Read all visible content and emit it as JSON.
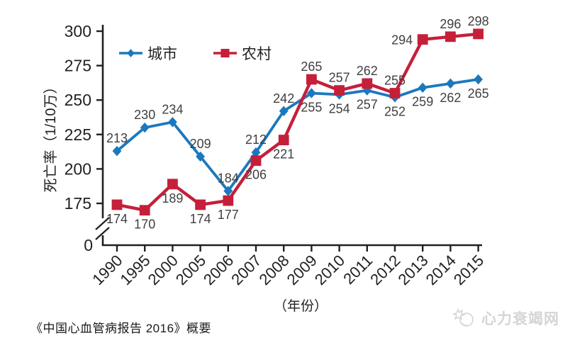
{
  "page": {
    "caption": "《中国心血管病报告 2016》概要",
    "watermark": "心力衰竭网"
  },
  "chart_data": {
    "type": "line",
    "title": "",
    "xlabel": "（年份）",
    "ylabel": "死亡率（1/10万）",
    "categories": [
      "1990",
      "1995",
      "2000",
      "2005",
      "2006",
      "2007",
      "2008",
      "2009",
      "2010",
      "2011",
      "2012",
      "2013",
      "2014",
      "2015"
    ],
    "y_ticks": [
      0,
      175,
      200,
      225,
      250,
      275,
      300
    ],
    "ylim": [
      167,
      300
    ],
    "axis_break_between_0_and_175": true,
    "grid": false,
    "legend_position": "top-inside",
    "axis_color": "#231f20",
    "tick_label_color": "#231f20",
    "data_label_color": "#3f3f3f",
    "series": [
      {
        "name": "城市",
        "color": "#1b78be",
        "marker": "diamond",
        "values": [
          213,
          230,
          234,
          209,
          184,
          212,
          242,
          255,
          254,
          257,
          252,
          259,
          262,
          265
        ],
        "label_positions": [
          "above",
          "above",
          "above",
          "above",
          "above",
          "above",
          "above",
          "below",
          "below",
          "below",
          "below",
          "below",
          "below",
          "below"
        ]
      },
      {
        "name": "农村",
        "color": "#c51f3a",
        "marker": "square",
        "values": [
          174,
          170,
          189,
          174,
          177,
          206,
          221,
          265,
          257,
          262,
          255,
          294,
          296,
          298
        ],
        "label_positions": [
          "below",
          "below",
          "below",
          "below",
          "below",
          "below",
          "below",
          "above",
          "above",
          "above",
          "above",
          "left",
          "above",
          "above"
        ]
      }
    ]
  }
}
